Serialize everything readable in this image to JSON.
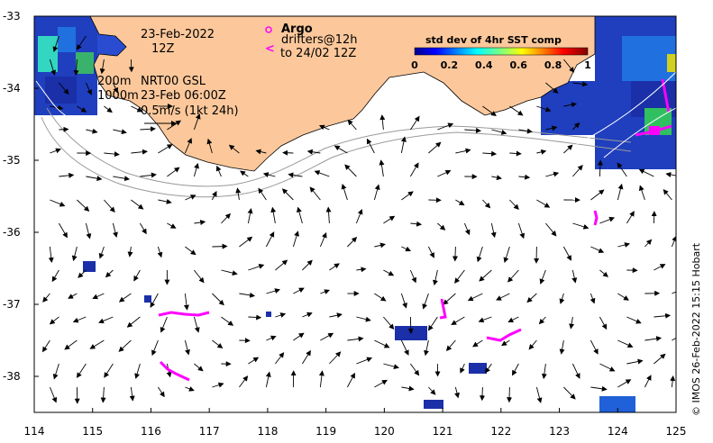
{
  "map": {
    "date_line1": "23-Feb-2022",
    "date_line2": "12Z",
    "argo_label": "Argo",
    "drifters_line1": "drifters@12h",
    "drifters_line2": "to 24/02 12Z",
    "depth_200": "200m",
    "depth_1000": "1000m",
    "product": "NRT00 GSL",
    "product_time": "23-Feb 06:00Z",
    "scale_label": "0.5m/s (1kt 24h)",
    "colorbar_title": "std dev of 4hr SST comp",
    "colorbar_ticks": [
      "0",
      "0.2",
      "0.4",
      "0.6",
      "0.8",
      "1"
    ],
    "x_ticks": [
      "114",
      "115",
      "116",
      "117",
      "118",
      "119",
      "120",
      "121",
      "122",
      "123",
      "124",
      "125"
    ],
    "y_ticks": [
      "-33",
      "-34",
      "-35",
      "-36",
      "-37",
      "-38"
    ],
    "credit": "© IMOS 26-Feb-2022 15:15 Hobart",
    "colors": {
      "land": "#fcc89b",
      "argo": "#ff00ff",
      "drifter": "#ff00ff",
      "ocean": "#ffffff",
      "sst_low": "#00008f",
      "sst_high": "#800000"
    },
    "lon_range": [
      114,
      125
    ],
    "lat_range": [
      -38.5,
      -33
    ]
  }
}
